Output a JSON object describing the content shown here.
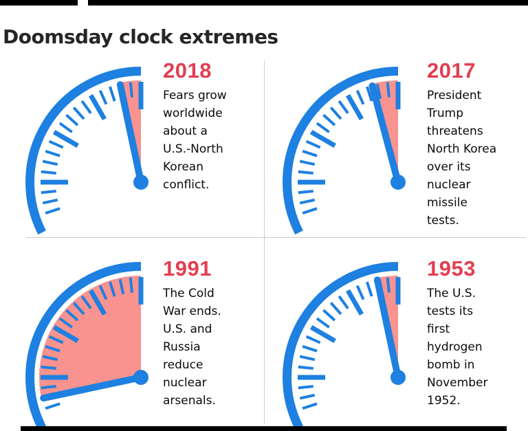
{
  "page": {
    "title": "Doomsday clock extremes"
  },
  "colors": {
    "clock_blue": "#1e80e0",
    "wedge_pink": "#f8938f",
    "year_red": "#e33e51",
    "title_text": "#262626",
    "body_text": "#0a0a0a",
    "divider": "#cccccc",
    "bar_black": "#000000",
    "background": "#ffffff"
  },
  "chart_data": {
    "type": "other",
    "subtype": "doomsday-clock-quadrants",
    "title": "Doomsday clock extremes",
    "unit": "minutes to midnight",
    "layout": "2x2 grid, quarter clock face (9-to-12 o'clock) per panel, pink wedge = time remaining to midnight",
    "clocks": [
      {
        "year": "2018",
        "minutes_to_midnight": 2,
        "description": "Fears grow\nworldwide\nabout a\nU.S.-North\nKorean\nconflict."
      },
      {
        "year": "2017",
        "minutes_to_midnight": 2.5,
        "description": "President\nTrump\nthreatens\nNorth Korea\nover its\nnuclear\nmissile\ntests."
      },
      {
        "year": "1991",
        "minutes_to_midnight": 17,
        "description": "The Cold\nWar ends.\nU.S. and\nRussia\nreduce\nnuclear\narsenals."
      },
      {
        "year": "1953",
        "minutes_to_midnight": 2,
        "description": "The U.S.\ntests its\nfirst\nhydrogen\nbomb in\nNovember\n1952."
      }
    ]
  }
}
